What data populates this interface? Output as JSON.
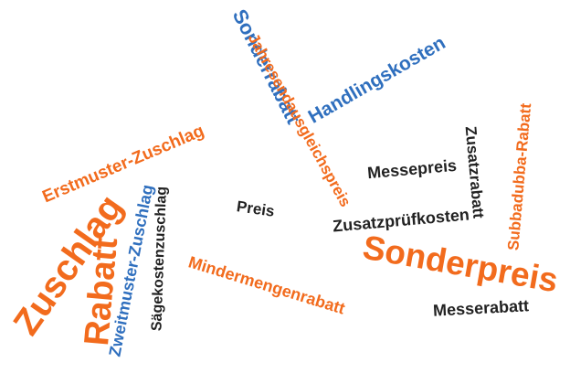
{
  "colors": {
    "orange": "#f26b1d",
    "blue": "#2f6fbe",
    "dark": "#222222",
    "background": "#ffffff"
  },
  "words": {
    "sonderrabatt": "Sonderrabatt",
    "handlingskosten": "Handlingskosten",
    "jahresendausgleichspreis": "Jahresendausgleichspreis",
    "erstmuster_zuschlag": "Erstmuster-Zuschlag",
    "zweitmuster_zuschlag": "Zweitmuster-Zuschlag",
    "saegekostenzuschlag": "Sägekostenzuschlag",
    "zuschlag": "Zuschlag",
    "rabatt": "Rabatt",
    "preis": "Preis",
    "messepreis": "Messepreis",
    "zusatzrabatt": "Zusatzrabatt",
    "subbadubba_rabatt": "Subbadubba-Rabatt",
    "zusatzpruefkosten": "Zusatzprüfkosten",
    "sonderpreis": "Sonderpreis",
    "mindermengenrabatt": "Mindermengenrabatt",
    "messerabatt": "Messerabatt"
  }
}
